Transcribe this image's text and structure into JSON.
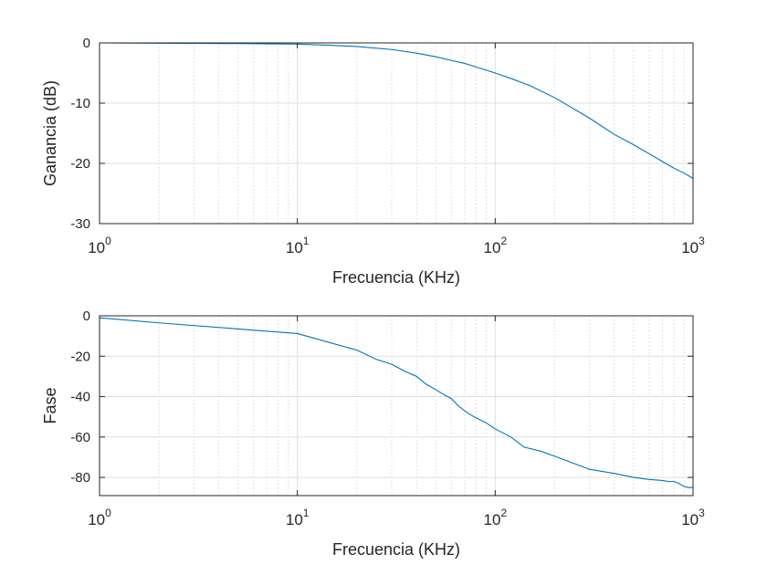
{
  "colors": {
    "series": "#0072BD",
    "axis": "#262626",
    "background": "#FFFFFF"
  },
  "chart_data": [
    {
      "type": "line",
      "title": "",
      "xlabel": "Frecuencia (KHz)",
      "ylabel": "Ganancia (dB)",
      "xscale": "log",
      "xlim": [
        1,
        1000
      ],
      "ylim": [
        -30,
        0
      ],
      "grid": true,
      "xticks": [
        {
          "base": "10",
          "exp": "0",
          "value": 1
        },
        {
          "base": "10",
          "exp": "1",
          "value": 10
        },
        {
          "base": "10",
          "exp": "2",
          "value": 100
        },
        {
          "base": "10",
          "exp": "3",
          "value": 1000
        }
      ],
      "yticks": [
        {
          "label": "0",
          "value": 0
        },
        {
          "label": "-10",
          "value": -10
        },
        {
          "label": "-20",
          "value": -20
        },
        {
          "label": "-30",
          "value": -30
        }
      ],
      "series": [
        {
          "x": [
            1,
            2,
            5,
            10,
            15,
            20,
            30,
            40,
            50,
            60,
            70,
            80,
            100,
            120,
            150,
            200,
            300,
            400,
            500,
            600,
            700,
            800,
            900,
            1000
          ],
          "y": [
            0,
            -0.05,
            -0.1,
            -0.2,
            -0.4,
            -0.6,
            -1.1,
            -1.7,
            -2.3,
            -2.9,
            -3.4,
            -4.0,
            -5.0,
            -5.9,
            -7.1,
            -9.1,
            -12.5,
            -15.2,
            -16.9,
            -18.4,
            -19.7,
            -20.8,
            -21.6,
            -22.5
          ]
        }
      ]
    },
    {
      "type": "line",
      "title": "",
      "xlabel": "Frecuencia (KHz)",
      "ylabel": "Fase",
      "xscale": "log",
      "xlim": [
        1,
        1000
      ],
      "ylim": [
        -89,
        0
      ],
      "grid": true,
      "xticks": [
        {
          "base": "10",
          "exp": "0",
          "value": 1
        },
        {
          "base": "10",
          "exp": "1",
          "value": 10
        },
        {
          "base": "10",
          "exp": "2",
          "value": 100
        },
        {
          "base": "10",
          "exp": "3",
          "value": 1000
        }
      ],
      "yticks": [
        {
          "label": "0",
          "value": 0
        },
        {
          "label": "-20",
          "value": -20
        },
        {
          "label": "-40",
          "value": -40
        },
        {
          "label": "-60",
          "value": -60
        },
        {
          "label": "-80",
          "value": -80
        }
      ],
      "series": [
        {
          "x": [
            1,
            2,
            5,
            10,
            20,
            25,
            30,
            35,
            40,
            45,
            50,
            55,
            60,
            65,
            70,
            75,
            80,
            90,
            100,
            120,
            140,
            170,
            200,
            300,
            400,
            500,
            600,
            700,
            750,
            800,
            850,
            900,
            950,
            1000
          ],
          "y": [
            -1,
            -3.5,
            -6.5,
            -8.8,
            -17,
            -21.5,
            -24,
            -27.5,
            -30,
            -34,
            -36.5,
            -39,
            -41,
            -44.5,
            -47,
            -49,
            -50.5,
            -53,
            -56,
            -60,
            -65,
            -67,
            -69.5,
            -76,
            -78,
            -80,
            -81,
            -81.5,
            -82,
            -82,
            -83,
            -84.5,
            -85,
            -85
          ]
        }
      ]
    }
  ]
}
